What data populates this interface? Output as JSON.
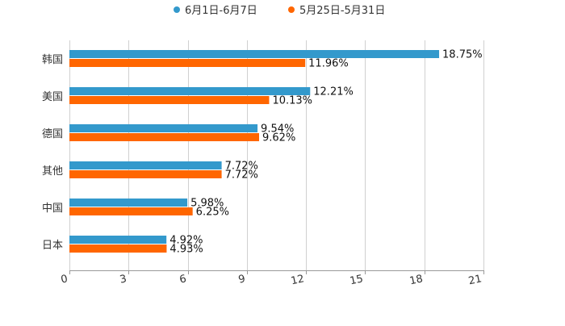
{
  "chart_data": {
    "type": "bar",
    "orientation": "horizontal",
    "title": "",
    "xlabel": "",
    "ylabel": "",
    "categories": [
      "韩国",
      "美国",
      "德国",
      "其他",
      "中国",
      "日本"
    ],
    "series": [
      {
        "name": "6月1日-6月7日",
        "color": "#3399cc",
        "values": [
          18.75,
          12.21,
          9.54,
          7.72,
          5.98,
          4.92
        ],
        "labels": [
          "18.75%",
          "12.21%",
          "9.54%",
          "7.72%",
          "5.98%",
          "4.92%"
        ]
      },
      {
        "name": "5月25日-5月31日",
        "color": "#ff6600",
        "values": [
          11.96,
          10.13,
          9.62,
          7.72,
          6.25,
          4.93
        ],
        "labels": [
          "11.96%",
          "10.13%",
          "9.62%",
          "7.72%",
          "6.25%",
          "4.93%"
        ]
      }
    ],
    "xlim": [
      0,
      21
    ],
    "xticks": [
      "0",
      "3",
      "6",
      "9",
      "12",
      "15",
      "18",
      "21"
    ],
    "grid": true,
    "legend": "top-center"
  }
}
